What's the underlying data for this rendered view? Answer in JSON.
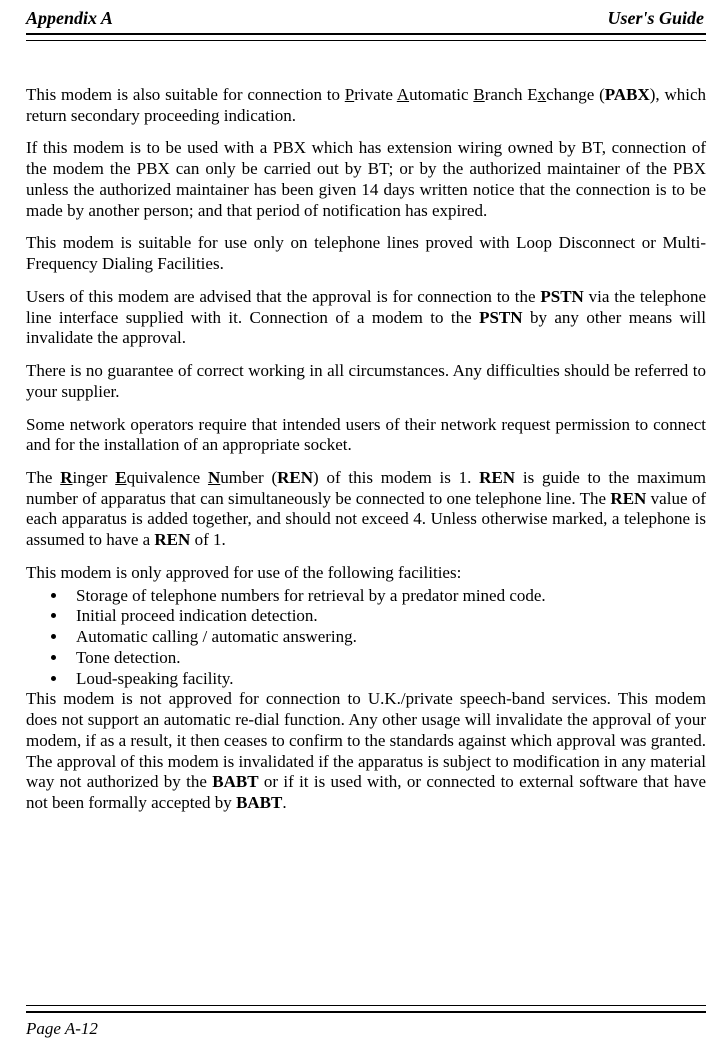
{
  "header": {
    "left": "Appendix A",
    "right": "User's Guide"
  },
  "p1": {
    "a": "This modem is also suitable for connection to ",
    "P": "P",
    "b": "rivate ",
    "A": "A",
    "c": "utomatic ",
    "B": "B",
    "d": "ranch E",
    "x": "x",
    "e": "change (",
    "PABX": "PABX",
    "f": "), which return secondary proceeding indication."
  },
  "p2": "If this modem is to be used with a PBX which has extension wiring owned by BT, connection of the modem the PBX can only be carried out by BT; or by the authorized maintainer of the PBX unless the authorized maintainer has been given 14 days written notice that the connection is to be made by another person; and that period of notification has expired.",
  "p3": "This modem is suitable for use only on telephone lines proved with Loop Disconnect or Multi-Frequency Dialing Facilities.",
  "p4": {
    "a": "Users of this modem are advised that the approval is for connection to the ",
    "PSTN1": "PSTN",
    "b": " via the telephone line interface supplied with it. Connection of a modem to the ",
    "PSTN2": "PSTN",
    "c": " by any other means will invalidate the approval."
  },
  "p5": "There is no guarantee of correct working in all circumstances. Any difficulties should be referred to your supplier.",
  "p6": "Some network operators require that intended users of their network request permission to connect and for the installation of an appropriate socket.",
  "p7": {
    "a": "The ",
    "R": "R",
    "b": "inger ",
    "E": "E",
    "c": "quivalence ",
    "N": "N",
    "d": "umber (",
    "REN1": "REN",
    "e": ") of this modem is 1. ",
    "REN2": "REN",
    "f": " is guide to the maximum number of apparatus that can simultaneously be connected to one telephone line. The ",
    "REN3": "REN",
    "g": " value of each apparatus is added together, and should not exceed 4. Unless otherwise marked, a telephone is assumed to have a ",
    "REN4": "REN",
    "h": " of 1."
  },
  "p8": "This modem is only approved for use of the following facilities:",
  "list": {
    "i1": "Storage of telephone numbers for retrieval by a predator mined code.",
    "i2": "Initial proceed indication detection.",
    "i3": "Automatic calling / automatic answering.",
    "i4": "Tone detection.",
    "i5": "Loud-speaking facility."
  },
  "p9": {
    "a": "This modem is not approved for connection to U.K./private speech-band services. This modem does not support an automatic re-dial function. Any other usage will invalidate the approval of your modem, if as a result, it then ceases to confirm to the standards against which approval was granted. The approval of this modem is invalidated if the apparatus is subject to modification in any material way not authorized by the ",
    "BABT1": "BABT",
    "b": " or if it is used with, or connected to external software that have not been formally accepted by ",
    "BABT2": "BABT",
    "c": "."
  },
  "footer": "Page A-12"
}
